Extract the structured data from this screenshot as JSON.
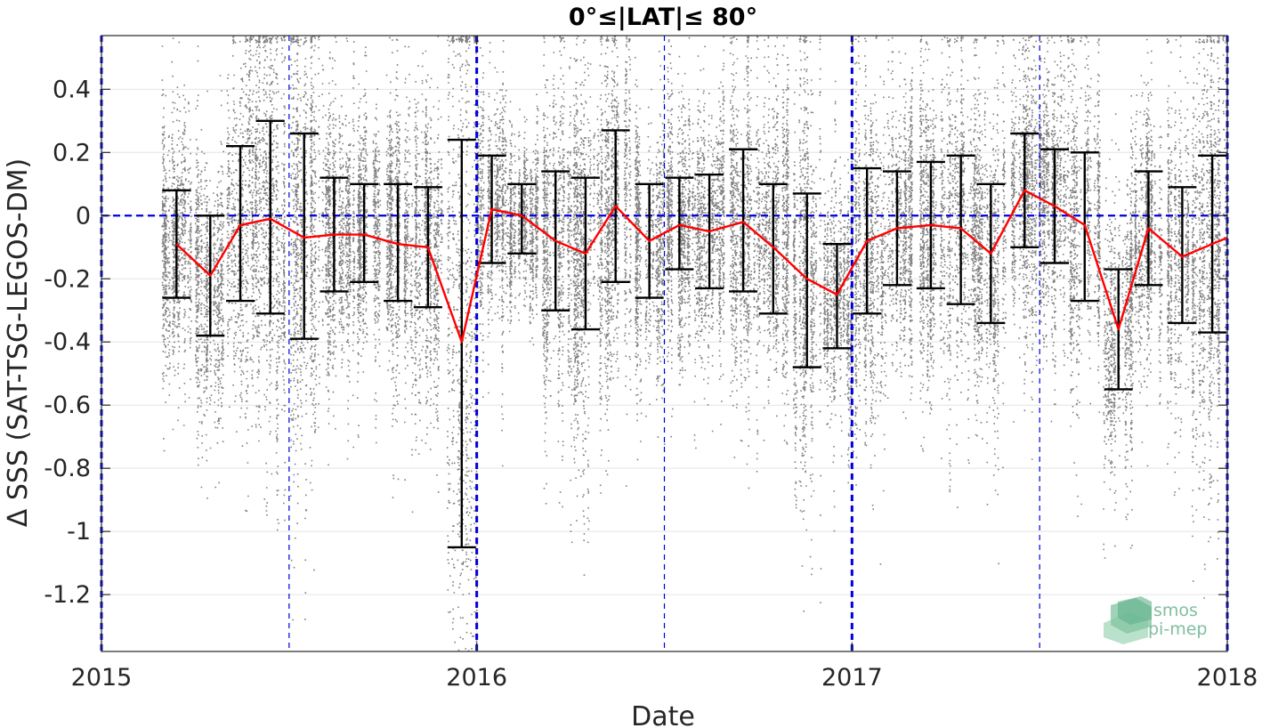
{
  "chart_data": {
    "type": "scatter",
    "title": "0°≤|LAT|≤ 80°",
    "xlabel": "Date",
    "ylabel": "Δ SSS (SAT-TSG-LEGOS-DM)",
    "xlim": [
      2015.0,
      2018.0
    ],
    "ylim": [
      -1.38,
      0.57
    ],
    "x_ticks": [
      2015,
      2016,
      2017,
      2018
    ],
    "x_tick_labels": [
      "2015",
      "2016",
      "2017",
      "2018"
    ],
    "y_ticks": [
      0.4,
      0.2,
      0,
      -0.2,
      -0.4,
      -0.6,
      -0.8,
      -1,
      -1.2
    ],
    "y_tick_labels": [
      "0.4",
      "0.2",
      "0",
      "-0.2",
      "-0.4",
      "-0.6",
      "-0.8",
      "-1",
      "-1.2"
    ],
    "grid": true,
    "colors": {
      "points": "#808080",
      "mean_line": "#ff0000",
      "error_bars": "#000000",
      "reference_lines": "#0000dd"
    },
    "vertical_reference_lines": [
      {
        "x": 2015.0,
        "style": "thick-dashed"
      },
      {
        "x": 2015.5,
        "style": "thin-dashed"
      },
      {
        "x": 2016.0,
        "style": "thick-dashed"
      },
      {
        "x": 2016.5,
        "style": "thin-dashed"
      },
      {
        "x": 2017.0,
        "style": "thick-dashed"
      },
      {
        "x": 2017.5,
        "style": "thin-dashed"
      },
      {
        "x": 2018.0,
        "style": "thick-dashed"
      }
    ],
    "horizontal_reference_line": {
      "y": 0,
      "style": "dashed"
    },
    "series": [
      {
        "type": "line-with-errorbars",
        "points": [
          {
            "x": 2015.2,
            "y": -0.09,
            "ylow": -0.26,
            "yhigh": 0.08
          },
          {
            "x": 2015.29,
            "y": -0.19,
            "ylow": -0.38,
            "yhigh": 0.0
          },
          {
            "x": 2015.37,
            "y": -0.03,
            "ylow": -0.27,
            "yhigh": 0.22
          },
          {
            "x": 2015.45,
            "y": -0.01,
            "ylow": -0.31,
            "yhigh": 0.3
          },
          {
            "x": 2015.54,
            "y": -0.07,
            "ylow": -0.39,
            "yhigh": 0.26
          },
          {
            "x": 2015.62,
            "y": -0.06,
            "ylow": -0.24,
            "yhigh": 0.12
          },
          {
            "x": 2015.7,
            "y": -0.06,
            "ylow": -0.21,
            "yhigh": 0.1
          },
          {
            "x": 2015.79,
            "y": -0.09,
            "ylow": -0.27,
            "yhigh": 0.1
          },
          {
            "x": 2015.87,
            "y": -0.1,
            "ylow": -0.29,
            "yhigh": 0.09
          },
          {
            "x": 2015.96,
            "y": -0.4,
            "ylow": -1.05,
            "yhigh": 0.24
          },
          {
            "x": 2016.04,
            "y": 0.02,
            "ylow": -0.15,
            "yhigh": 0.19
          },
          {
            "x": 2016.12,
            "y": 0.0,
            "ylow": -0.12,
            "yhigh": 0.1
          },
          {
            "x": 2016.21,
            "y": -0.08,
            "ylow": -0.3,
            "yhigh": 0.14
          },
          {
            "x": 2016.29,
            "y": -0.12,
            "ylow": -0.36,
            "yhigh": 0.12
          },
          {
            "x": 2016.37,
            "y": 0.03,
            "ylow": -0.21,
            "yhigh": 0.27
          },
          {
            "x": 2016.46,
            "y": -0.08,
            "ylow": -0.26,
            "yhigh": 0.1
          },
          {
            "x": 2016.54,
            "y": -0.03,
            "ylow": -0.17,
            "yhigh": 0.12
          },
          {
            "x": 2016.62,
            "y": -0.05,
            "ylow": -0.23,
            "yhigh": 0.13
          },
          {
            "x": 2016.71,
            "y": -0.02,
            "ylow": -0.24,
            "yhigh": 0.21
          },
          {
            "x": 2016.79,
            "y": -0.1,
            "ylow": -0.31,
            "yhigh": 0.1
          },
          {
            "x": 2016.88,
            "y": -0.2,
            "ylow": -0.48,
            "yhigh": 0.07
          },
          {
            "x": 2016.96,
            "y": -0.25,
            "ylow": -0.42,
            "yhigh": -0.09
          },
          {
            "x": 2017.04,
            "y": -0.08,
            "ylow": -0.31,
            "yhigh": 0.15
          },
          {
            "x": 2017.12,
            "y": -0.04,
            "ylow": -0.22,
            "yhigh": 0.14
          },
          {
            "x": 2017.21,
            "y": -0.03,
            "ylow": -0.23,
            "yhigh": 0.17
          },
          {
            "x": 2017.29,
            "y": -0.04,
            "ylow": -0.28,
            "yhigh": 0.19
          },
          {
            "x": 2017.37,
            "y": -0.12,
            "ylow": -0.34,
            "yhigh": 0.1
          },
          {
            "x": 2017.46,
            "y": 0.08,
            "ylow": -0.1,
            "yhigh": 0.26
          },
          {
            "x": 2017.54,
            "y": 0.03,
            "ylow": -0.15,
            "yhigh": 0.21
          },
          {
            "x": 2017.62,
            "y": -0.03,
            "ylow": -0.27,
            "yhigh": 0.2
          },
          {
            "x": 2017.71,
            "y": -0.36,
            "ylow": -0.55,
            "yhigh": -0.17
          },
          {
            "x": 2017.79,
            "y": -0.04,
            "ylow": -0.22,
            "yhigh": 0.14
          },
          {
            "x": 2017.88,
            "y": -0.13,
            "ylow": -0.34,
            "yhigh": 0.09
          },
          {
            "x": 2017.96,
            "y": -0.09,
            "ylow": -0.37,
            "yhigh": 0.19
          },
          {
            "x": 2018.0,
            "y": -0.07
          }
        ]
      }
    ],
    "scatter_description_counts": 1
  },
  "logo": {
    "line1": "smos",
    "line2": "pi-mep"
  }
}
